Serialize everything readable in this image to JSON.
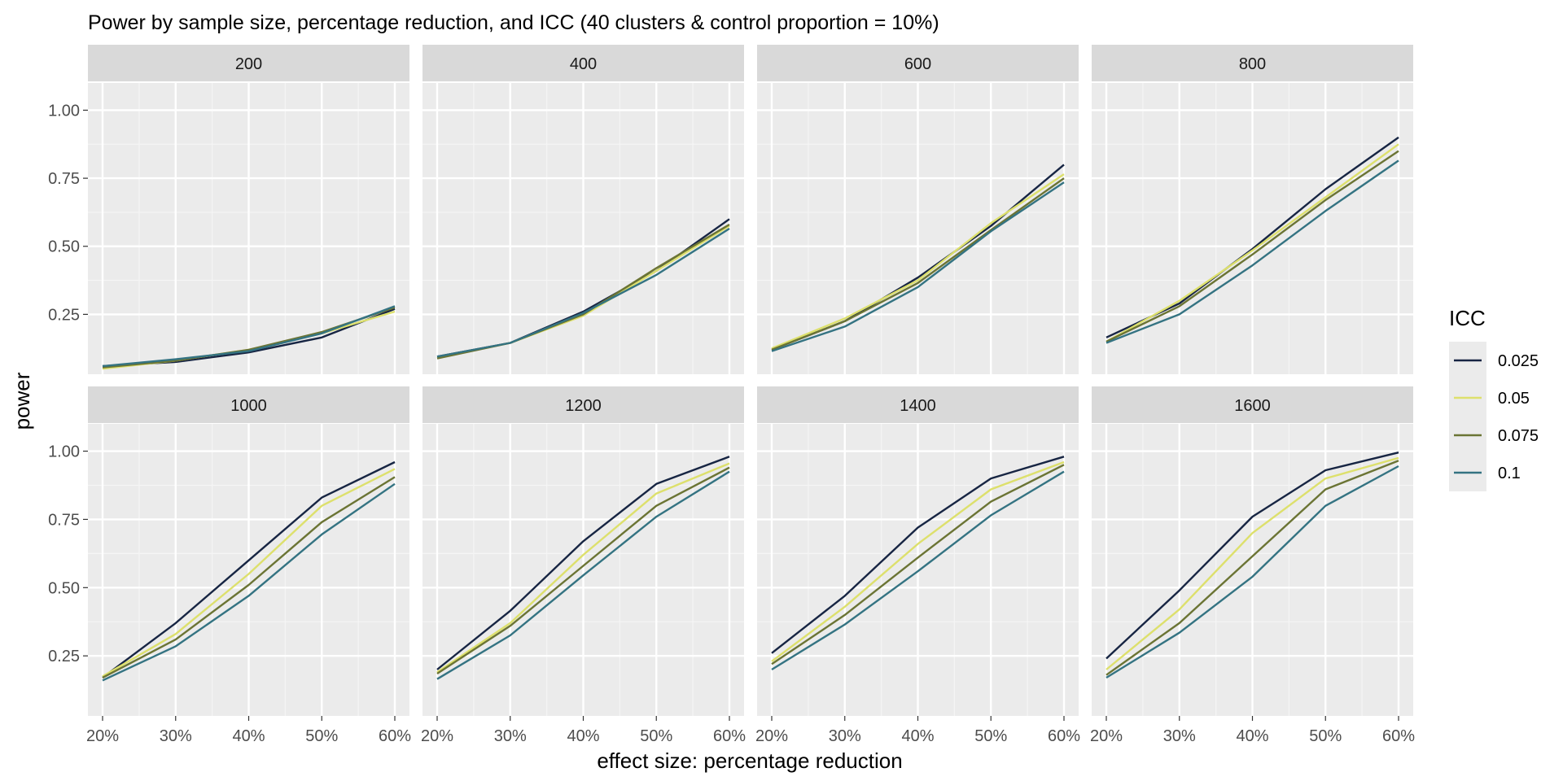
{
  "chart_data": {
    "type": "line",
    "title": "Power by sample size, percentage reduction, and ICC (40 clusters & control proportion = 10%)",
    "xlabel": "effect size: percentage reduction",
    "ylabel": "power",
    "x": [
      "20%",
      "30%",
      "40%",
      "50%",
      "60%"
    ],
    "y_ticks": [
      "0.25",
      "0.50",
      "0.75",
      "1.00"
    ],
    "ylim": [
      0.03,
      1.1
    ],
    "grid": true,
    "legend": {
      "title": "ICC",
      "placement": "right",
      "entries": [
        "0.025",
        "0.05",
        "0.075",
        "0.1"
      ]
    },
    "colors": {
      "0.025": "#172543",
      "0.05": "#dde06c",
      "0.075": "#6b7434",
      "0.1": "#347382"
    },
    "panels": [
      {
        "label": "200",
        "series": [
          {
            "name": "0.025",
            "values": [
              0.06,
              0.075,
              0.11,
              0.165,
              0.27
            ]
          },
          {
            "name": "0.05",
            "values": [
              0.05,
              0.08,
              0.12,
              0.18,
              0.26
            ]
          },
          {
            "name": "0.075",
            "values": [
              0.055,
              0.08,
              0.12,
              0.185,
              0.275
            ]
          },
          {
            "name": "0.1",
            "values": [
              0.06,
              0.085,
              0.115,
              0.18,
              0.28
            ]
          }
        ]
      },
      {
        "label": "400",
        "series": [
          {
            "name": "0.025",
            "values": [
              0.095,
              0.145,
              0.26,
              0.41,
              0.6
            ]
          },
          {
            "name": "0.05",
            "values": [
              0.09,
              0.145,
              0.245,
              0.41,
              0.575
            ]
          },
          {
            "name": "0.075",
            "values": [
              0.088,
              0.145,
              0.25,
              0.42,
              0.58
            ]
          },
          {
            "name": "0.1",
            "values": [
              0.095,
              0.145,
              0.255,
              0.395,
              0.565
            ]
          }
        ]
      },
      {
        "label": "600",
        "series": [
          {
            "name": "0.025",
            "values": [
              0.12,
              0.225,
              0.385,
              0.575,
              0.8
            ]
          },
          {
            "name": "0.05",
            "values": [
              0.125,
              0.235,
              0.375,
              0.585,
              0.765
            ]
          },
          {
            "name": "0.075",
            "values": [
              0.12,
              0.225,
              0.365,
              0.56,
              0.75
            ]
          },
          {
            "name": "0.1",
            "values": [
              0.115,
              0.205,
              0.35,
              0.555,
              0.735
            ]
          }
        ]
      },
      {
        "label": "800",
        "series": [
          {
            "name": "0.025",
            "values": [
              0.165,
              0.29,
              0.49,
              0.71,
              0.9
            ]
          },
          {
            "name": "0.05",
            "values": [
              0.15,
              0.3,
              0.485,
              0.68,
              0.875
            ]
          },
          {
            "name": "0.075",
            "values": [
              0.15,
              0.28,
              0.47,
              0.67,
              0.85
            ]
          },
          {
            "name": "0.1",
            "values": [
              0.145,
              0.25,
              0.43,
              0.63,
              0.815
            ]
          }
        ]
      },
      {
        "label": "1000",
        "series": [
          {
            "name": "0.025",
            "values": [
              0.17,
              0.37,
              0.6,
              0.83,
              0.96
            ]
          },
          {
            "name": "0.05",
            "values": [
              0.175,
              0.33,
              0.55,
              0.8,
              0.935
            ]
          },
          {
            "name": "0.075",
            "values": [
              0.17,
              0.31,
              0.51,
              0.74,
              0.905
            ]
          },
          {
            "name": "0.1",
            "values": [
              0.16,
              0.285,
              0.47,
              0.695,
              0.88
            ]
          }
        ]
      },
      {
        "label": "1200",
        "series": [
          {
            "name": "0.025",
            "values": [
              0.2,
              0.415,
              0.67,
              0.88,
              0.98
            ]
          },
          {
            "name": "0.05",
            "values": [
              0.19,
              0.37,
              0.62,
              0.845,
              0.955
            ]
          },
          {
            "name": "0.075",
            "values": [
              0.185,
              0.36,
              0.58,
              0.8,
              0.94
            ]
          },
          {
            "name": "0.1",
            "values": [
              0.165,
              0.325,
              0.545,
              0.76,
              0.925
            ]
          }
        ]
      },
      {
        "label": "1400",
        "series": [
          {
            "name": "0.025",
            "values": [
              0.26,
              0.47,
              0.72,
              0.9,
              0.98
            ]
          },
          {
            "name": "0.05",
            "values": [
              0.23,
              0.43,
              0.66,
              0.86,
              0.96
            ]
          },
          {
            "name": "0.075",
            "values": [
              0.22,
              0.4,
              0.61,
              0.815,
              0.95
            ]
          },
          {
            "name": "0.1",
            "values": [
              0.2,
              0.365,
              0.56,
              0.765,
              0.925
            ]
          }
        ]
      },
      {
        "label": "1600",
        "series": [
          {
            "name": "0.025",
            "values": [
              0.24,
              0.49,
              0.76,
              0.93,
              0.995
            ]
          },
          {
            "name": "0.05",
            "values": [
              0.2,
              0.42,
              0.7,
              0.9,
              0.975
            ]
          },
          {
            "name": "0.075",
            "values": [
              0.18,
              0.37,
              0.615,
              0.86,
              0.965
            ]
          },
          {
            "name": "0.1",
            "values": [
              0.17,
              0.335,
              0.54,
              0.8,
              0.945
            ]
          }
        ]
      }
    ]
  }
}
